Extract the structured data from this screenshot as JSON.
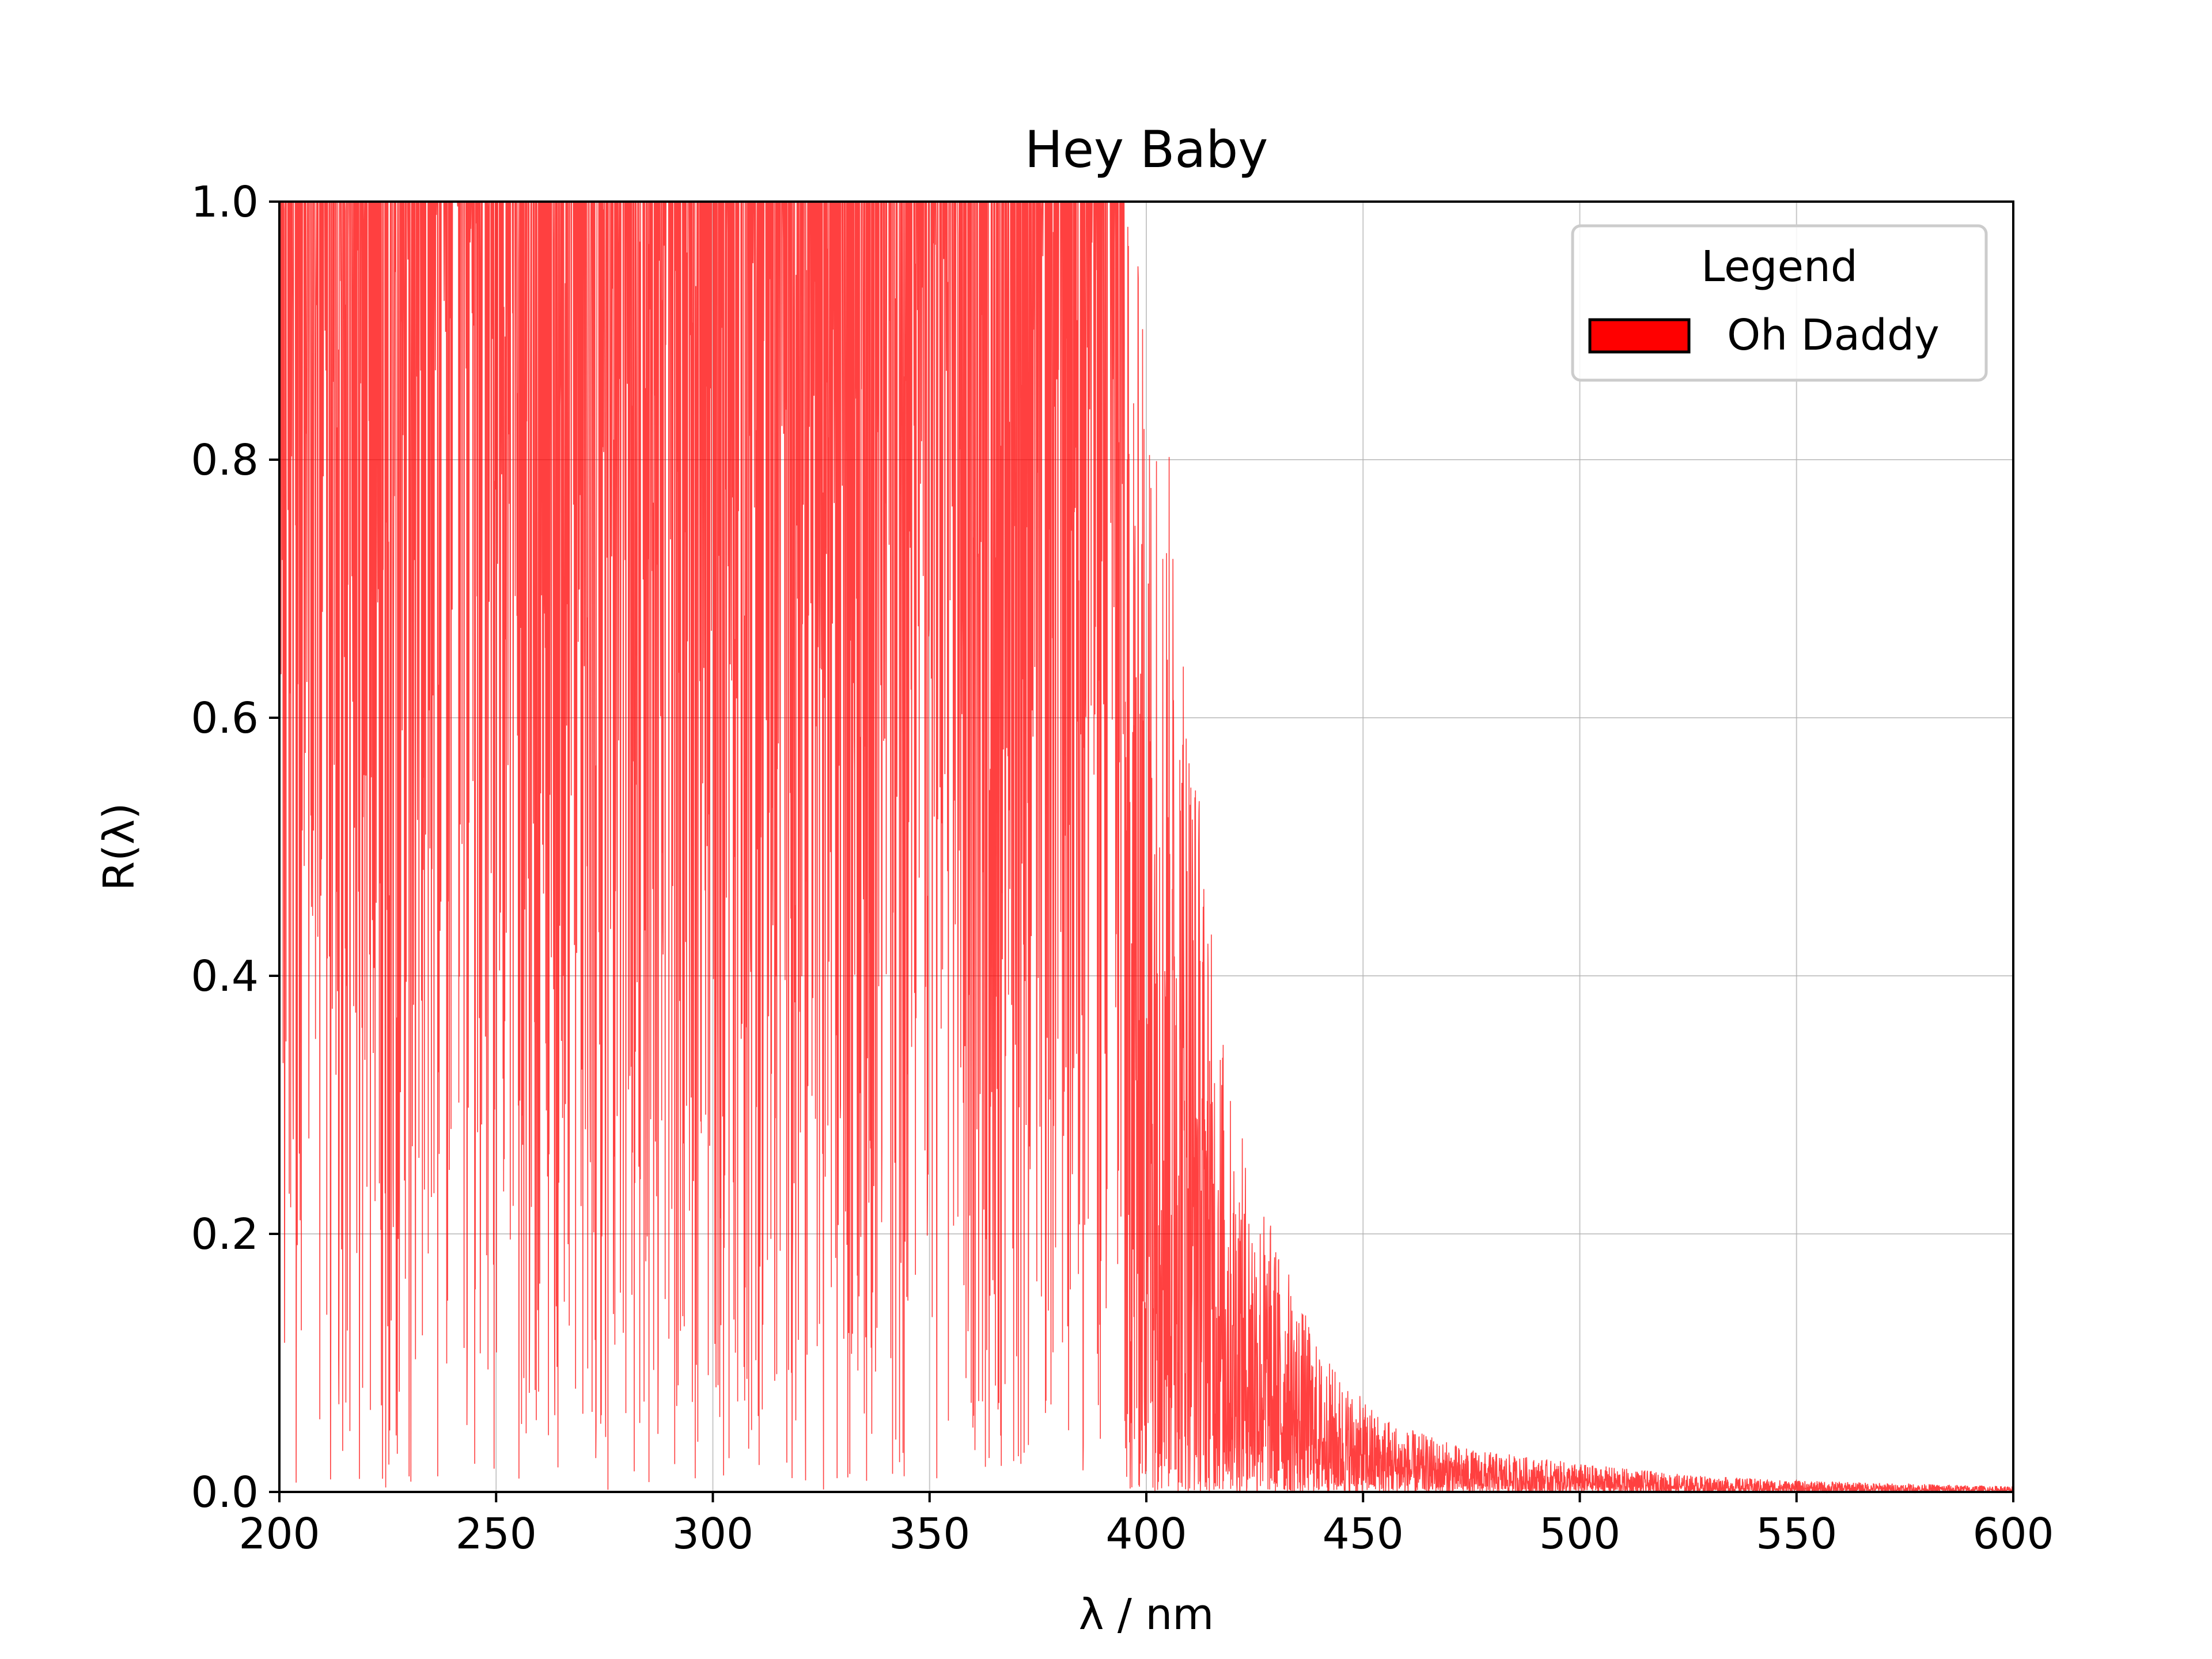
{
  "chart_data": {
    "type": "line",
    "title": "Hey Baby",
    "xlabel": "λ / nm",
    "ylabel": "R(λ)",
    "xlim": [
      200,
      600
    ],
    "ylim": [
      0.0,
      1.0
    ],
    "x_ticks": [
      200,
      250,
      300,
      350,
      400,
      450,
      500,
      550,
      600
    ],
    "x_tick_labels": [
      "200",
      "250",
      "300",
      "350",
      "400",
      "450",
      "500",
      "550",
      "600"
    ],
    "y_ticks": [
      0.0,
      0.2,
      0.4,
      0.6,
      0.8,
      1.0
    ],
    "y_tick_labels": [
      "0.0",
      "0.2",
      "0.4",
      "0.6",
      "0.8",
      "1.0"
    ],
    "grid": true,
    "legend": {
      "title": "Legend",
      "placement": "top-right",
      "entries": [
        {
          "label": "Oh Daddy",
          "color": "#ff0000"
        }
      ]
    },
    "series": [
      {
        "name": "Oh Daddy",
        "color": "#ff0000",
        "x_range": [
          200,
          600
        ],
        "envelope": [
          {
            "x": 200,
            "y": 1.0
          },
          {
            "x": 390,
            "y": 1.0
          },
          {
            "x": 400,
            "y": 0.85
          },
          {
            "x": 405,
            "y": 0.75
          },
          {
            "x": 410,
            "y": 0.6
          },
          {
            "x": 415,
            "y": 0.4
          },
          {
            "x": 420,
            "y": 0.27
          },
          {
            "x": 430,
            "y": 0.18
          },
          {
            "x": 440,
            "y": 0.1
          },
          {
            "x": 450,
            "y": 0.065
          },
          {
            "x": 460,
            "y": 0.045
          },
          {
            "x": 475,
            "y": 0.03
          },
          {
            "x": 500,
            "y": 0.02
          },
          {
            "x": 525,
            "y": 0.012
          },
          {
            "x": 550,
            "y": 0.008
          },
          {
            "x": 575,
            "y": 0.006
          },
          {
            "x": 600,
            "y": 0.004
          }
        ]
      }
    ]
  }
}
